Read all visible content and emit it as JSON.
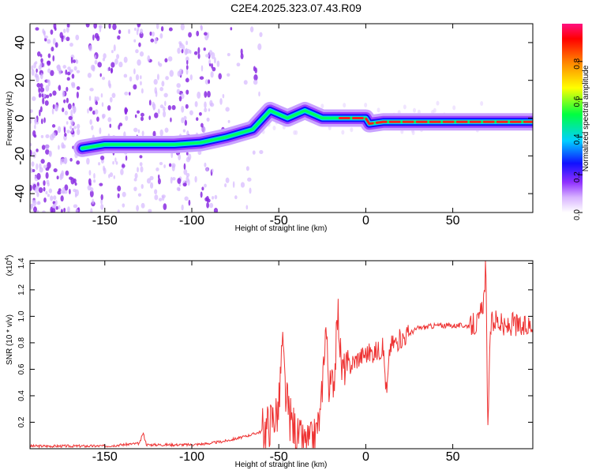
{
  "title": "C2E4.2025.323.07.43.R09",
  "chart_data": [
    {
      "type": "heatmap",
      "xlabel": "Height of straight line (km)",
      "ylabel": "Frequency (Hz)",
      "xlim": [
        -193,
        96
      ],
      "ylim": [
        -50,
        50
      ],
      "xticks": [
        -150,
        -100,
        -50,
        0,
        50
      ],
      "yticks": [
        -40,
        -20,
        0,
        20,
        40
      ],
      "colorbar": {
        "label": "Normalized spectral amplitude",
        "range": [
          0,
          1
        ],
        "ticks": [
          "0.0",
          "0.2",
          "0.4",
          "0.6",
          "0.8"
        ],
        "colors": [
          "#ffffff",
          "#b070ff",
          "#1010ff",
          "#00d0ff",
          "#00ff40",
          "#ffff00",
          "#ff8000",
          "#ff0000",
          "#ff1080"
        ]
      },
      "ridge": [
        {
          "x": -163,
          "y": -16
        },
        {
          "x": -150,
          "y": -14
        },
        {
          "x": -130,
          "y": -14
        },
        {
          "x": -110,
          "y": -14
        },
        {
          "x": -95,
          "y": -13
        },
        {
          "x": -80,
          "y": -10
        },
        {
          "x": -65,
          "y": -6
        },
        {
          "x": -55,
          "y": 4
        },
        {
          "x": -45,
          "y": 0
        },
        {
          "x": -35,
          "y": 4
        },
        {
          "x": -25,
          "y": 0
        },
        {
          "x": -15,
          "y": 0
        },
        {
          "x": 0,
          "y": 0
        },
        {
          "x": 2,
          "y": -3
        },
        {
          "x": 10,
          "y": -2
        },
        {
          "x": 40,
          "y": -2
        },
        {
          "x": 70,
          "y": -2
        },
        {
          "x": 96,
          "y": -2
        }
      ]
    },
    {
      "type": "line",
      "xlabel": "Height of straight line (km)",
      "ylabel": "SNR (10 * v/v)",
      "y_multiplier": "(x10⁴)",
      "exp_base": "(x10",
      "exp_power": "4",
      "exp_close": ")",
      "xlim": [
        -193,
        96
      ],
      "ylim": [
        0,
        1.42
      ],
      "xticks": [
        -150,
        -100,
        -50,
        0,
        50
      ],
      "yticks": [
        "0.2",
        "0.4",
        "0.6",
        "0.8",
        "1.0",
        "1.2",
        "1.4"
      ],
      "color": "#ee3333",
      "series_points": [
        {
          "x": -193,
          "y": 0.02
        },
        {
          "x": -160,
          "y": 0.02
        },
        {
          "x": -150,
          "y": 0.02
        },
        {
          "x": -140,
          "y": 0.03
        },
        {
          "x": -130,
          "y": 0.04
        },
        {
          "x": -128,
          "y": 0.12
        },
        {
          "x": -126,
          "y": 0.03
        },
        {
          "x": -110,
          "y": 0.03
        },
        {
          "x": -100,
          "y": 0.03
        },
        {
          "x": -90,
          "y": 0.04
        },
        {
          "x": -80,
          "y": 0.06
        },
        {
          "x": -70,
          "y": 0.09
        },
        {
          "x": -60,
          "y": 0.13
        },
        {
          "x": -55,
          "y": 0.2
        },
        {
          "x": -50,
          "y": 0.3
        },
        {
          "x": -48,
          "y": 0.8
        },
        {
          "x": -46,
          "y": 0.4
        },
        {
          "x": -44,
          "y": 0.25
        },
        {
          "x": -40,
          "y": 0.12
        },
        {
          "x": -35,
          "y": 0.05
        },
        {
          "x": -30,
          "y": 0.08
        },
        {
          "x": -26,
          "y": 0.25
        },
        {
          "x": -23,
          "y": 0.95
        },
        {
          "x": -21,
          "y": 0.45
        },
        {
          "x": -18,
          "y": 0.55
        },
        {
          "x": -16,
          "y": 1.05
        },
        {
          "x": -14,
          "y": 0.6
        },
        {
          "x": -10,
          "y": 0.62
        },
        {
          "x": -5,
          "y": 0.68
        },
        {
          "x": 0,
          "y": 0.72
        },
        {
          "x": 5,
          "y": 0.73
        },
        {
          "x": 10,
          "y": 0.76
        },
        {
          "x": 12,
          "y": 0.4
        },
        {
          "x": 14,
          "y": 0.78
        },
        {
          "x": 20,
          "y": 0.83
        },
        {
          "x": 25,
          "y": 0.87
        },
        {
          "x": 30,
          "y": 0.91
        },
        {
          "x": 40,
          "y": 0.93
        },
        {
          "x": 50,
          "y": 0.93
        },
        {
          "x": 60,
          "y": 0.93
        },
        {
          "x": 65,
          "y": 0.95
        },
        {
          "x": 68,
          "y": 1.15
        },
        {
          "x": 69,
          "y": 1.42
        },
        {
          "x": 70,
          "y": 0.17
        },
        {
          "x": 72,
          "y": 0.95
        },
        {
          "x": 75,
          "y": 0.98
        },
        {
          "x": 80,
          "y": 0.9
        },
        {
          "x": 85,
          "y": 0.95
        },
        {
          "x": 90,
          "y": 0.9
        },
        {
          "x": 96,
          "y": 0.95
        }
      ]
    }
  ]
}
